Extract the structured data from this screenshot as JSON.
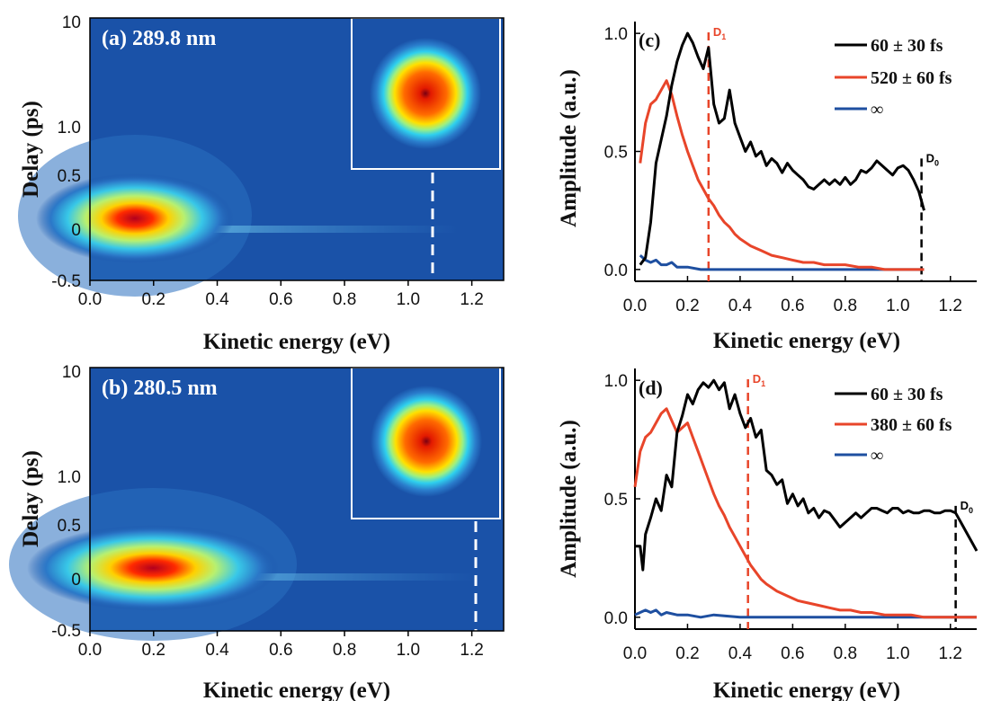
{
  "colors": {
    "map_background": "#1a52a8",
    "black_series": "#000000",
    "red_series": "#e8452a",
    "blue_series": "#1e4fa0",
    "d1_marker": "#e8452a",
    "d0_marker": "#000000",
    "white_marker": "#ffffff"
  },
  "chart_data": [
    {
      "type": "heatmap",
      "panel": "(a) 289.8 nm",
      "xlabel": "Kinetic energy (eV)",
      "ylabel": "Delay (ps)",
      "xlim": [
        0.0,
        1.3
      ],
      "xticks": [
        "0.0",
        "0.2",
        "0.4",
        "0.6",
        "0.8",
        "1.0",
        "1.2"
      ],
      "yticks": [
        "-0.5",
        "0",
        "0.5",
        "1.0",
        "10"
      ],
      "y_scale": "linear near zero, logarithmic above 1 ps",
      "marker_x": 1.07,
      "inset": "photoelectron image",
      "peak": {
        "energy": 0.12,
        "delay": 0.07
      }
    },
    {
      "type": "heatmap",
      "panel": "(b) 280.5 nm",
      "xlabel": "Kinetic energy (eV)",
      "ylabel": "Delay (ps)",
      "xlim": [
        0.0,
        1.3
      ],
      "xticks": [
        "0.0",
        "0.2",
        "0.4",
        "0.6",
        "0.8",
        "1.0",
        "1.2"
      ],
      "yticks": [
        "-0.5",
        "0",
        "0.5",
        "1.0",
        "10"
      ],
      "y_scale": "linear near zero, logarithmic above 1 ps",
      "marker_x": 1.21,
      "inset": "photoelectron image",
      "peak": {
        "energy": 0.17,
        "delay": 0.07
      }
    },
    {
      "type": "line",
      "panel": "(c)",
      "xlabel": "Kinetic energy (eV)",
      "ylabel": "Amplitude (a.u.)",
      "xlim": [
        0.0,
        1.3
      ],
      "ylim": [
        -0.05,
        1.05
      ],
      "xticks": [
        "0.0",
        "0.2",
        "0.4",
        "0.6",
        "0.8",
        "1.0",
        "1.2"
      ],
      "yticks": [
        "0.0",
        "0.5",
        "1.0"
      ],
      "legend_position": "top-right",
      "markers": [
        {
          "label": "D1",
          "x": 0.28,
          "color": "#e8452a"
        },
        {
          "label": "D0",
          "x": 1.09,
          "color": "#000000"
        }
      ],
      "series": [
        {
          "name": "60 ± 30 fs",
          "color": "#000000",
          "x": [
            0.02,
            0.04,
            0.06,
            0.08,
            0.1,
            0.12,
            0.14,
            0.16,
            0.18,
            0.2,
            0.22,
            0.24,
            0.26,
            0.28,
            0.3,
            0.32,
            0.34,
            0.36,
            0.38,
            0.4,
            0.42,
            0.44,
            0.46,
            0.48,
            0.5,
            0.52,
            0.54,
            0.56,
            0.58,
            0.6,
            0.62,
            0.64,
            0.66,
            0.68,
            0.7,
            0.72,
            0.74,
            0.76,
            0.78,
            0.8,
            0.82,
            0.84,
            0.86,
            0.88,
            0.9,
            0.92,
            0.94,
            0.96,
            0.98,
            1.0,
            1.02,
            1.04,
            1.06,
            1.08,
            1.1
          ],
          "y": [
            0.02,
            0.05,
            0.2,
            0.45,
            0.55,
            0.65,
            0.78,
            0.88,
            0.95,
            1.0,
            0.96,
            0.9,
            0.85,
            0.94,
            0.7,
            0.62,
            0.64,
            0.76,
            0.62,
            0.56,
            0.5,
            0.54,
            0.48,
            0.5,
            0.44,
            0.47,
            0.45,
            0.41,
            0.45,
            0.42,
            0.4,
            0.38,
            0.35,
            0.34,
            0.36,
            0.38,
            0.36,
            0.38,
            0.36,
            0.39,
            0.36,
            0.38,
            0.42,
            0.41,
            0.43,
            0.46,
            0.44,
            0.42,
            0.4,
            0.43,
            0.44,
            0.42,
            0.38,
            0.33,
            0.25
          ]
        },
        {
          "name": "520 ± 60 fs",
          "color": "#e8452a",
          "x": [
            0.02,
            0.04,
            0.06,
            0.08,
            0.1,
            0.12,
            0.14,
            0.16,
            0.18,
            0.2,
            0.22,
            0.24,
            0.26,
            0.28,
            0.3,
            0.32,
            0.34,
            0.36,
            0.38,
            0.4,
            0.44,
            0.48,
            0.52,
            0.56,
            0.6,
            0.64,
            0.68,
            0.72,
            0.76,
            0.8,
            0.85,
            0.9,
            0.95,
            1.0,
            1.05,
            1.1
          ],
          "y": [
            0.45,
            0.62,
            0.7,
            0.72,
            0.76,
            0.8,
            0.74,
            0.65,
            0.57,
            0.5,
            0.44,
            0.38,
            0.34,
            0.3,
            0.27,
            0.23,
            0.2,
            0.18,
            0.15,
            0.13,
            0.1,
            0.08,
            0.06,
            0.05,
            0.04,
            0.03,
            0.03,
            0.02,
            0.02,
            0.02,
            0.01,
            0.01,
            0.0,
            0.0,
            0.0,
            0.0
          ]
        },
        {
          "name": "∞",
          "color": "#1e4fa0",
          "x": [
            0.02,
            0.04,
            0.06,
            0.08,
            0.1,
            0.12,
            0.14,
            0.16,
            0.2,
            0.25,
            0.3,
            0.4,
            0.5,
            0.6,
            0.7,
            0.8,
            0.9,
            1.0,
            1.1
          ],
          "y": [
            0.06,
            0.04,
            0.03,
            0.04,
            0.02,
            0.02,
            0.03,
            0.01,
            0.01,
            0.0,
            0.0,
            0.0,
            0.0,
            0.0,
            0.0,
            0.0,
            0.0,
            0.0,
            0.0
          ]
        }
      ]
    },
    {
      "type": "line",
      "panel": "(d)",
      "xlabel": "Kinetic energy (eV)",
      "ylabel": "Amplitude (a.u.)",
      "xlim": [
        0.0,
        1.3
      ],
      "ylim": [
        -0.05,
        1.05
      ],
      "xticks": [
        "0.0",
        "0.2",
        "0.4",
        "0.6",
        "0.8",
        "1.0",
        "1.2"
      ],
      "yticks": [
        "0.0",
        "0.5",
        "1.0"
      ],
      "legend_position": "top-right",
      "markers": [
        {
          "label": "D1",
          "x": 0.43,
          "color": "#e8452a"
        },
        {
          "label": "D0",
          "x": 1.22,
          "color": "#000000"
        }
      ],
      "series": [
        {
          "name": "60 ± 30 fs",
          "color": "#000000",
          "x": [
            0.0,
            0.02,
            0.03,
            0.04,
            0.06,
            0.08,
            0.1,
            0.12,
            0.14,
            0.16,
            0.18,
            0.2,
            0.22,
            0.24,
            0.26,
            0.28,
            0.3,
            0.32,
            0.34,
            0.36,
            0.38,
            0.4,
            0.42,
            0.44,
            0.46,
            0.48,
            0.5,
            0.52,
            0.54,
            0.56,
            0.58,
            0.6,
            0.62,
            0.64,
            0.66,
            0.68,
            0.7,
            0.72,
            0.74,
            0.76,
            0.78,
            0.8,
            0.82,
            0.84,
            0.86,
            0.88,
            0.9,
            0.92,
            0.94,
            0.96,
            0.98,
            1.0,
            1.02,
            1.04,
            1.06,
            1.08,
            1.1,
            1.12,
            1.14,
            1.16,
            1.18,
            1.2,
            1.22,
            1.24,
            1.26,
            1.28,
            1.3
          ],
          "y": [
            0.3,
            0.3,
            0.2,
            0.35,
            0.42,
            0.5,
            0.45,
            0.6,
            0.55,
            0.78,
            0.85,
            0.94,
            0.9,
            0.96,
            0.99,
            0.97,
            1.0,
            0.96,
            0.99,
            0.88,
            0.94,
            0.86,
            0.8,
            0.84,
            0.76,
            0.79,
            0.62,
            0.6,
            0.56,
            0.58,
            0.48,
            0.52,
            0.47,
            0.5,
            0.44,
            0.46,
            0.42,
            0.45,
            0.44,
            0.41,
            0.38,
            0.4,
            0.42,
            0.44,
            0.42,
            0.44,
            0.46,
            0.46,
            0.45,
            0.44,
            0.46,
            0.46,
            0.44,
            0.45,
            0.44,
            0.44,
            0.45,
            0.45,
            0.44,
            0.44,
            0.45,
            0.45,
            0.44,
            0.4,
            0.36,
            0.32,
            0.28
          ]
        },
        {
          "name": "380 ± 60 fs",
          "color": "#e8452a",
          "x": [
            0.0,
            0.02,
            0.04,
            0.06,
            0.08,
            0.1,
            0.12,
            0.14,
            0.16,
            0.18,
            0.2,
            0.22,
            0.24,
            0.26,
            0.28,
            0.3,
            0.32,
            0.34,
            0.36,
            0.38,
            0.4,
            0.42,
            0.44,
            0.46,
            0.48,
            0.5,
            0.54,
            0.58,
            0.62,
            0.66,
            0.7,
            0.74,
            0.78,
            0.82,
            0.86,
            0.9,
            0.95,
            1.0,
            1.05,
            1.1,
            1.15,
            1.2,
            1.25,
            1.3
          ],
          "y": [
            0.55,
            0.7,
            0.76,
            0.78,
            0.82,
            0.86,
            0.88,
            0.83,
            0.78,
            0.8,
            0.82,
            0.76,
            0.7,
            0.64,
            0.58,
            0.52,
            0.47,
            0.43,
            0.38,
            0.34,
            0.3,
            0.26,
            0.22,
            0.19,
            0.16,
            0.14,
            0.11,
            0.09,
            0.07,
            0.06,
            0.05,
            0.04,
            0.03,
            0.03,
            0.02,
            0.02,
            0.01,
            0.01,
            0.01,
            0.0,
            0.0,
            0.0,
            0.0,
            0.0
          ]
        },
        {
          "name": "∞",
          "color": "#1e4fa0",
          "x": [
            0.0,
            0.02,
            0.04,
            0.06,
            0.08,
            0.1,
            0.12,
            0.16,
            0.2,
            0.25,
            0.3,
            0.4,
            0.5,
            0.6,
            0.7,
            0.8,
            0.9,
            1.0,
            1.1,
            1.2,
            1.3
          ],
          "y": [
            0.01,
            0.02,
            0.03,
            0.02,
            0.03,
            0.01,
            0.02,
            0.01,
            0.01,
            0.0,
            0.01,
            0.0,
            0.0,
            0.0,
            0.0,
            0.0,
            0.0,
            0.0,
            0.0,
            0.0,
            0.0
          ]
        }
      ]
    }
  ],
  "d1_label": "D",
  "d1_sub": "1",
  "d0_label": "D",
  "d0_sub": "0"
}
